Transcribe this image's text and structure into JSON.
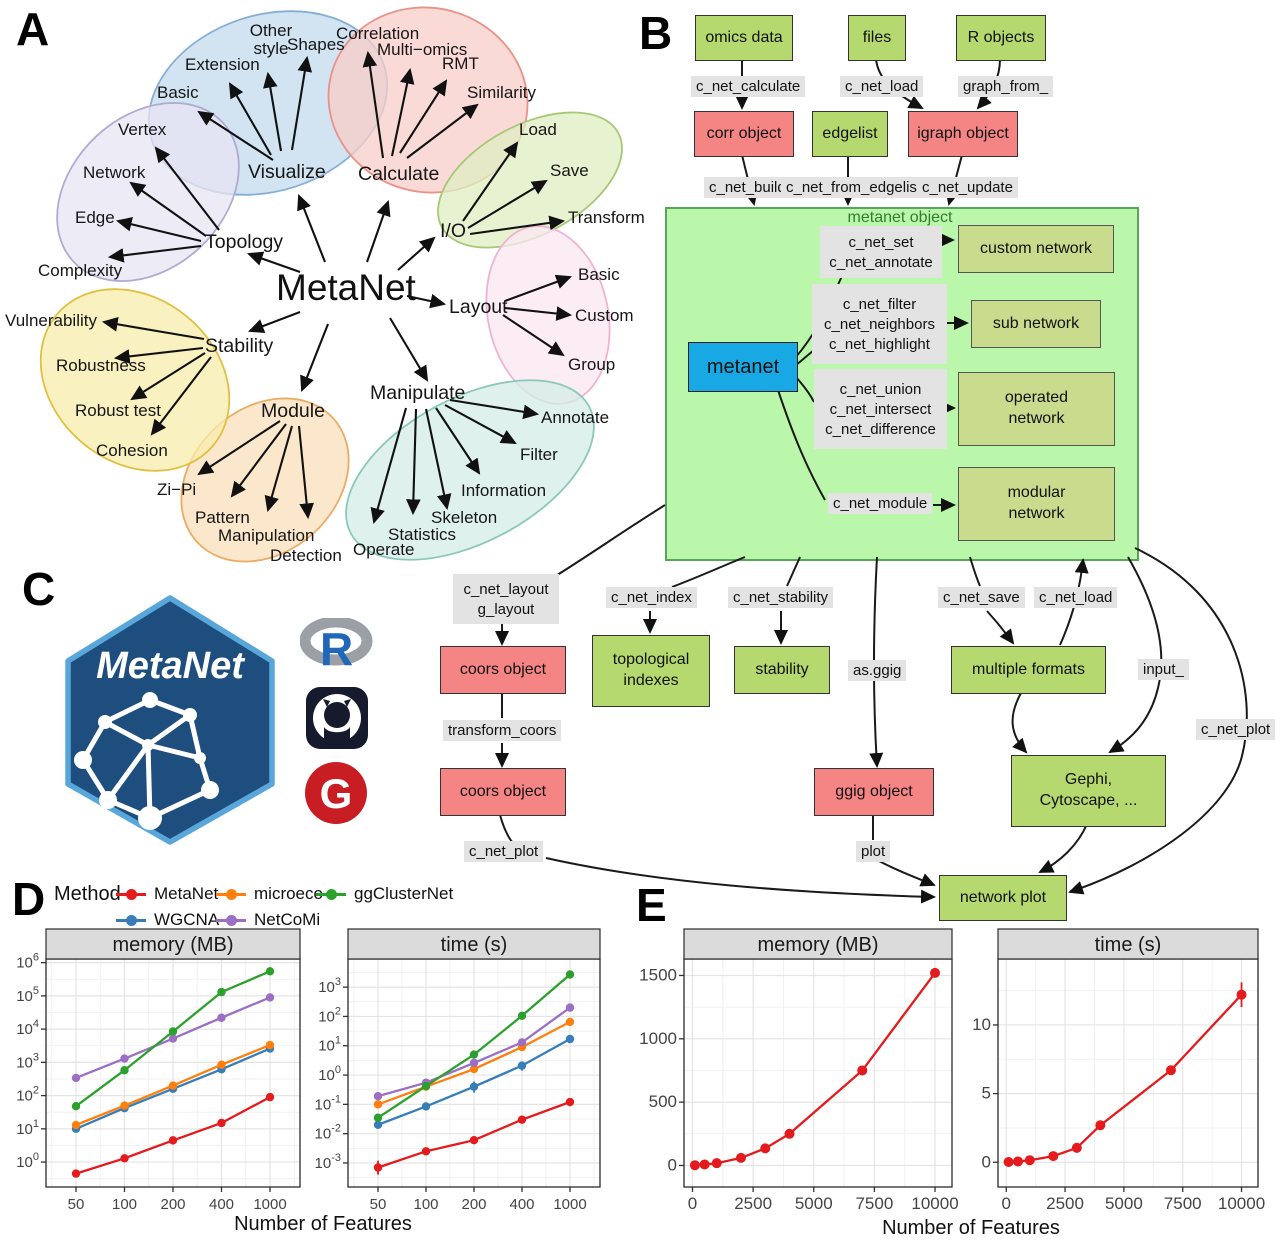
{
  "panel_letters": {
    "a": "A",
    "b": "B",
    "c": "C",
    "d": "D",
    "e": "E"
  },
  "panelA": {
    "center": "MetaNet",
    "clusters": [
      {
        "name": "Visualize",
        "items": [
          "Basic",
          "Extension",
          "Other style",
          "Shapes"
        ]
      },
      {
        "name": "Calculate",
        "items": [
          "Correlation",
          "Multi−omics",
          "RMT",
          "Similarity"
        ]
      },
      {
        "name": "I/O",
        "items": [
          "Load",
          "Save",
          "Transform"
        ]
      },
      {
        "name": "Layout",
        "items": [
          "Basic",
          "Custom",
          "Group"
        ]
      },
      {
        "name": "Manipulate",
        "items": [
          "Annotate",
          "Filter",
          "Information",
          "Skeleton",
          "Statistics",
          "Operate"
        ]
      },
      {
        "name": "Module",
        "items": [
          "Zi−Pi",
          "Pattern",
          "Manipulation",
          "Detection"
        ]
      },
      {
        "name": "Stability",
        "items": [
          "Vulnerability",
          "Robustness",
          "Robust test",
          "Cohesion"
        ]
      },
      {
        "name": "Topology",
        "items": [
          "Vertex",
          "Network",
          "Edge",
          "Complexity"
        ]
      }
    ]
  },
  "panelB": {
    "sources": [
      "omics data",
      "files",
      "R objects"
    ],
    "top_fns": [
      "c_net_calculate",
      "c_net_load",
      "graph_from_"
    ],
    "mid_boxes": [
      "corr object",
      "edgelist",
      "igraph object"
    ],
    "mid_fns": [
      "c_net_build",
      "c_net_from_edgelist",
      "c_net_update"
    ],
    "metanet_object": {
      "title": "metanet object",
      "core": "metanet",
      "groups": [
        {
          "fns": [
            "c_net_set",
            "c_net_annotate"
          ],
          "target": "custom network"
        },
        {
          "fns": [
            "c_net_filter",
            "c_net_neighbors",
            "c_net_highlight"
          ],
          "target": "sub network"
        },
        {
          "fns": [
            "c_net_union",
            "c_net_intersect",
            "c_net_difference"
          ],
          "target": "operated\nnetwork"
        },
        {
          "fns": [
            "c_net_module"
          ],
          "target": "modular\nnetwork"
        }
      ]
    },
    "flow": {
      "layout_fns": [
        "c_net_layout",
        "g_layout"
      ],
      "coors1": "coors object",
      "transform_fn": "transform_coors",
      "coors2": "coors object",
      "plot_fn_left": "c_net_plot",
      "index_fn": "c_net_index",
      "topo_box": "topological\nindexes",
      "stability_fn": "c_net_stability",
      "stability_box": "stability",
      "asggig_fn": "as.ggig",
      "ggig_box": "ggig object",
      "plot_fn": "plot",
      "save_fn": "c_net_save",
      "load_fn": "c_net_load",
      "formats_box": "multiple formats",
      "input_fn": "input_",
      "plot_fn_right": "c_net_plot",
      "gephi_box": "Gephi,\nCytoscape, ...",
      "network_plot": "network plot"
    }
  },
  "panelC": {
    "logo_text": "MetaNet",
    "r_letter": "R",
    "gitee_letter": "G"
  },
  "legend": {
    "title": "Method",
    "items": [
      {
        "label": "MetaNet",
        "color": "#E41A1C"
      },
      {
        "label": "WGCNA",
        "color": "#377EB8"
      },
      {
        "label": "microeco",
        "color": "#FF7F0E"
      },
      {
        "label": "NetCoMi",
        "color": "#9A6FC4"
      },
      {
        "label": "ggClusterNet",
        "color": "#2CA02C"
      }
    ]
  },
  "xlabel": "Number of Features",
  "chart_data": [
    {
      "panel": "D",
      "type": "line",
      "facet": "memory (MB)",
      "x_categories": [
        50,
        100,
        200,
        400,
        1000
      ],
      "yscale": "log",
      "ylim_exp": [
        -0.75,
        6.11
      ],
      "yticks_exp": [
        0,
        1,
        2,
        3,
        4,
        5,
        6
      ],
      "grid": true,
      "legend_position": "top",
      "series": [
        {
          "name": "MetaNet",
          "color": "#E41A1C",
          "values": [
            0.45,
            1.3,
            4.5,
            15,
            90
          ]
        },
        {
          "name": "WGCNA",
          "color": "#377EB8",
          "values": [
            10,
            42,
            160,
            620,
            2600
          ]
        },
        {
          "name": "microeco",
          "color": "#FF7F0E",
          "values": [
            13,
            50,
            200,
            850,
            3300
          ]
        },
        {
          "name": "NetCoMi",
          "color": "#9A6FC4",
          "values": [
            340,
            1300,
            5200,
            22000,
            90000
          ]
        },
        {
          "name": "ggClusterNet",
          "color": "#2CA02C",
          "values": [
            48,
            580,
            8500,
            130000,
            550000
          ]
        }
      ]
    },
    {
      "panel": "D",
      "type": "line",
      "facet": "time (s)",
      "x_categories": [
        50,
        100,
        200,
        400,
        1000
      ],
      "yscale": "log",
      "ylim_exp": [
        -3.82,
        3.96
      ],
      "yticks_exp": [
        -3,
        -2,
        -1,
        0,
        1,
        2,
        3
      ],
      "grid": true,
      "series": [
        {
          "name": "MetaNet",
          "color": "#E41A1C",
          "values": [
            0.0007,
            0.0025,
            0.006,
            0.03,
            0.12
          ],
          "err": {
            "0": [
              0.0004,
              0.0012
            ]
          }
        },
        {
          "name": "WGCNA",
          "color": "#377EB8",
          "values": [
            0.02,
            0.085,
            0.4,
            2.1,
            17
          ],
          "err": {
            "2": [
              0.25,
              0.6
            ],
            "3": [
              1.4,
              2.9
            ]
          }
        },
        {
          "name": "microeco",
          "color": "#FF7F0E",
          "values": [
            0.1,
            0.4,
            1.6,
            9,
            65
          ]
        },
        {
          "name": "NetCoMi",
          "color": "#9A6FC4",
          "values": [
            0.19,
            0.55,
            2.6,
            13,
            200
          ]
        },
        {
          "name": "ggClusterNet",
          "color": "#2CA02C",
          "values": [
            0.035,
            0.42,
            5,
            105,
            2700
          ]
        }
      ]
    },
    {
      "panel": "E",
      "type": "line",
      "facet": "memory (MB)",
      "x": [
        100,
        500,
        1000,
        2000,
        3000,
        4000,
        7000,
        10000
      ],
      "xlim": [
        -350,
        10700
      ],
      "xticks": [
        0,
        2500,
        5000,
        7500,
        10000
      ],
      "yscale": "linear",
      "ylim": [
        -170,
        1630
      ],
      "yticks": [
        0,
        500,
        1000,
        1500
      ],
      "grid": true,
      "series": [
        {
          "name": "MetaNet",
          "color": "#E41A1C",
          "values": [
            2,
            8,
            18,
            60,
            135,
            250,
            750,
            1520
          ]
        }
      ]
    },
    {
      "panel": "E",
      "type": "line",
      "facet": "time (s)",
      "x": [
        100,
        500,
        1000,
        2000,
        3000,
        4000,
        7000,
        10000
      ],
      "xlim": [
        -350,
        10700
      ],
      "xticks": [
        0,
        2500,
        5000,
        7500,
        10000
      ],
      "yscale": "linear",
      "ylim": [
        -1.8,
        14.8
      ],
      "yticks": [
        0,
        5,
        10
      ],
      "grid": true,
      "series": [
        {
          "name": "MetaNet",
          "color": "#E41A1C",
          "values": [
            0.02,
            0.06,
            0.15,
            0.45,
            1.05,
            2.7,
            6.7,
            12.2
          ],
          "err": {
            "7": [
              11.3,
              13.1
            ]
          }
        }
      ]
    }
  ]
}
